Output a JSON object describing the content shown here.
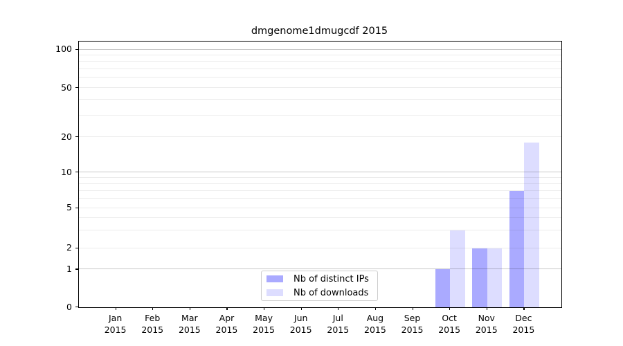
{
  "chart_data": {
    "type": "bar",
    "title": "dmgenome1dmugcdf 2015",
    "categories": [
      "Jan 2015",
      "Feb 2015",
      "Mar 2015",
      "Apr 2015",
      "May 2015",
      "Jun 2015",
      "Jul 2015",
      "Aug 2015",
      "Sep 2015",
      "Oct 2015",
      "Nov 2015",
      "Dec 2015"
    ],
    "series": [
      {
        "name": "Nb of distinct IPs",
        "color": "#aaaaff",
        "values": [
          0,
          0,
          0,
          0,
          0,
          0,
          0,
          0,
          0,
          1,
          2,
          7
        ]
      },
      {
        "name": "Nb of downloads",
        "color": "#ddddff",
        "values": [
          0,
          0,
          0,
          0,
          0,
          0,
          0,
          0,
          0,
          3,
          2,
          18
        ]
      }
    ],
    "xlabel": "",
    "ylabel": "",
    "y_ticks": [
      0,
      1,
      2,
      5,
      10,
      20,
      50,
      100
    ],
    "y_major_gridlines": [
      1,
      10,
      100
    ],
    "y_minor_gridlines": [
      2,
      3,
      4,
      5,
      6,
      7,
      8,
      9,
      20,
      30,
      40,
      50,
      60,
      70,
      80,
      90
    ],
    "ylim": [
      0,
      110
    ],
    "grid": true,
    "scale": "log-like with linear 0-1 segment",
    "legend_position": "bottom-center-inside"
  },
  "colors": {
    "bar_distinct_ips": "#aaaaff",
    "bar_downloads": "#ddddff",
    "grid_major": "#c6c6c6",
    "grid_minor": "#ebebeb",
    "spine": "#000000",
    "background": "#ffffff"
  }
}
